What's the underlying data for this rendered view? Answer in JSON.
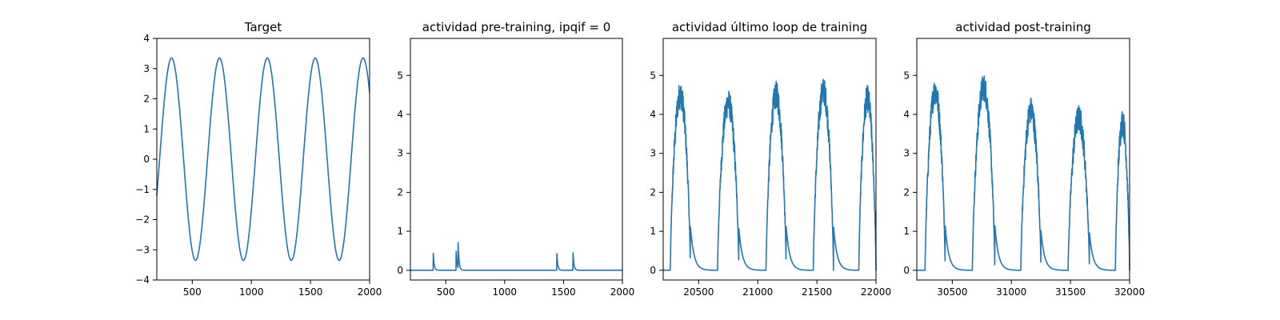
{
  "figure": {
    "series_color": "#1f77b4"
  },
  "chart_data": [
    {
      "type": "line",
      "title": "Target",
      "xlim": [
        200,
        2000
      ],
      "ylim": [
        -4,
        4
      ],
      "xticks": [
        500,
        1000,
        1500,
        2000
      ],
      "yticks": [
        -4,
        -3,
        -2,
        -1,
        0,
        1,
        2,
        3,
        4
      ],
      "grid": false,
      "legend": "none",
      "series": [
        {
          "kind": "sine",
          "x_start": 200,
          "x_end": 2000,
          "amplitude": 3.35,
          "period": 405,
          "peak_x": 325
        }
      ]
    },
    {
      "type": "line",
      "title": "actividad pre-training, ipqif = 0",
      "xlim": [
        200,
        2000
      ],
      "ylim": [
        -0.25,
        5.95
      ],
      "xticks": [
        500,
        1000,
        1500,
        2000
      ],
      "yticks": [
        0,
        1,
        2,
        3,
        4,
        5
      ],
      "grid": false,
      "legend": "none",
      "series": [
        {
          "kind": "spikes",
          "x_start": 200,
          "x_end": 2000,
          "baseline": 0,
          "decay": 8,
          "events": [
            [
              393,
              0.5
            ],
            [
              588,
              0.5
            ],
            [
              605,
              0.65
            ],
            [
              1442,
              0.5
            ],
            [
              1580,
              0.5
            ]
          ]
        }
      ]
    },
    {
      "type": "line",
      "title": "actividad último loop de training",
      "xlim": [
        20200,
        22000
      ],
      "ylim": [
        -0.25,
        5.95
      ],
      "xticks": [
        20500,
        21000,
        21500,
        22000
      ],
      "yticks": [
        0,
        1,
        2,
        3,
        4,
        5
      ],
      "grid": false,
      "legend": "none",
      "series": [
        {
          "kind": "bursts",
          "x_start": 20200,
          "x_end": 22000,
          "baseline": 0,
          "decay": 30,
          "bursts": [
            [
              20260,
              20430,
              4.5
            ],
            [
              20660,
              20840,
              4.3
            ],
            [
              21070,
              21240,
              4.5
            ],
            [
              21470,
              21640,
              4.6
            ],
            [
              21855,
              22000,
              4.4
            ]
          ]
        }
      ]
    },
    {
      "type": "line",
      "title": "actividad post-training",
      "xlim": [
        30200,
        32000
      ],
      "ylim": [
        -0.25,
        5.95
      ],
      "xticks": [
        30500,
        31000,
        31500,
        32000
      ],
      "yticks": [
        0,
        1,
        2,
        3,
        4,
        5
      ],
      "grid": false,
      "legend": "none",
      "series": [
        {
          "kind": "bursts",
          "x_start": 30200,
          "x_end": 32000,
          "baseline": 0,
          "decay": 30,
          "bursts": [
            [
              30270,
              30440,
              4.6
            ],
            [
              30670,
              30860,
              4.7
            ],
            [
              31080,
              31250,
              4.1
            ],
            [
              31480,
              31660,
              3.9
            ],
            [
              31880,
              32000,
              3.8
            ]
          ]
        }
      ]
    }
  ]
}
